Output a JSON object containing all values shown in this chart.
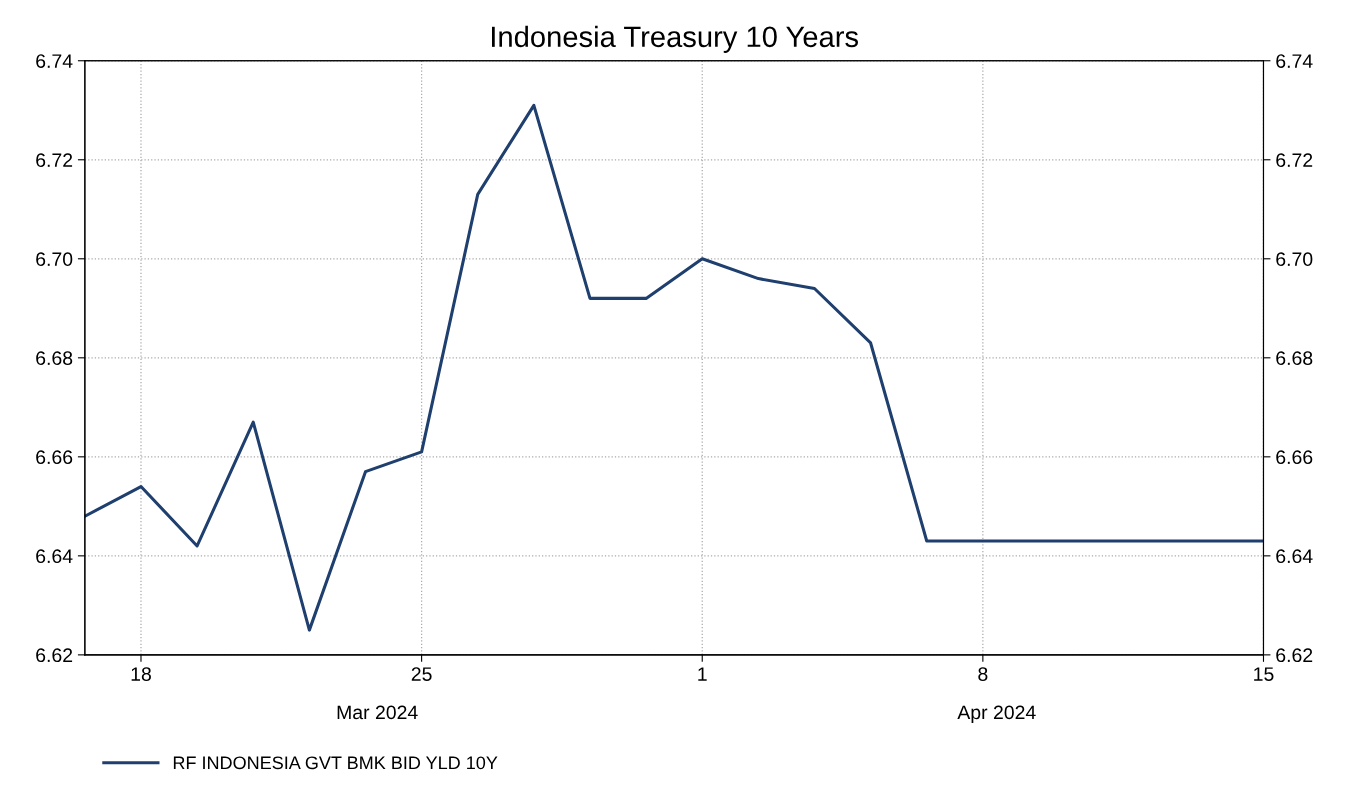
{
  "chart_data": {
    "type": "line",
    "title": "Indonesia Treasury 10 Years",
    "categories": [
      null,
      "18",
      null,
      null,
      null,
      null,
      "25",
      null,
      null,
      null,
      null,
      "1",
      null,
      null,
      null,
      null,
      "8",
      null,
      null,
      null,
      null,
      "15"
    ],
    "series": [
      {
        "name": "RF INDONESIA GVT BMK BID YLD 10Y",
        "color": "#1f3f6e",
        "values": [
          6.648,
          6.654,
          6.642,
          6.667,
          6.625,
          6.657,
          6.661,
          6.713,
          6.731,
          6.692,
          6.692,
          6.7,
          6.696,
          6.694,
          6.683,
          6.643,
          6.643,
          6.643,
          6.643,
          6.643,
          6.643,
          6.643
        ]
      }
    ],
    "ylim": [
      6.62,
      6.74
    ],
    "yticks": [
      6.62,
      6.64,
      6.66,
      6.68,
      {
        "value": 6.7,
        "label": "6.70"
      },
      6.72,
      6.74
    ],
    "y2lim": [
      6.62,
      6.74
    ],
    "y2ticks": [
      6.62,
      6.64,
      6.66,
      6.68,
      {
        "value": 6.7,
        "label": "6.70"
      },
      6.72,
      6.74
    ],
    "annotations": [
      "Mar 2024",
      "Apr 2024"
    ],
    "grid": true,
    "legend": "bottom left",
    "marker": "none",
    "line_style": "solid"
  }
}
